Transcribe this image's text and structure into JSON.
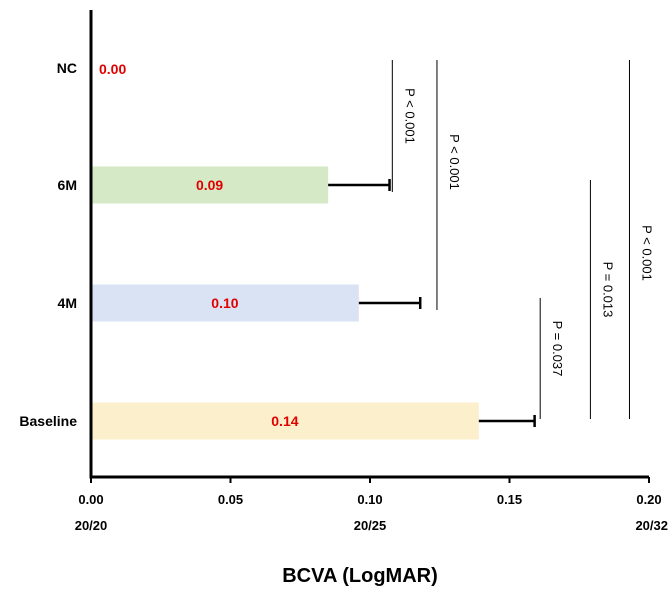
{
  "chart_data": {
    "type": "bar",
    "orientation": "horizontal",
    "categories": [
      "Baseline",
      "4M",
      "6M",
      "NC"
    ],
    "values": [
      0.139,
      0.096,
      0.085,
      0.0
    ],
    "errors": [
      0.02,
      0.022,
      0.022,
      0.0
    ],
    "value_labels": [
      "0.14",
      "0.10",
      "0.09",
      "0.00"
    ],
    "colors": [
      "#fcefcb",
      "#dae3f3",
      "#d6e9c6",
      "#ffffff"
    ],
    "value_label_color": "#e00000",
    "xlabel": "BCVA (LogMAR)",
    "xlim": [
      0,
      0.2
    ],
    "xticks": [
      {
        "value": 0,
        "label": "0.00"
      },
      {
        "value": 0.05,
        "label": "0.05"
      },
      {
        "value": 0.1,
        "label": "0.10"
      },
      {
        "value": 0.15,
        "label": "0.15"
      },
      {
        "value": 0.2,
        "label": "0.20"
      }
    ],
    "snellen_labels": [
      {
        "value": 0,
        "label": "20/20"
      },
      {
        "value": 0.1,
        "label": "20/25"
      },
      {
        "value": 0.2,
        "label": "20/32"
      }
    ],
    "significance": [
      {
        "from": "NC",
        "to": "6M",
        "x": 0.108,
        "label": "P < 0.001"
      },
      {
        "from": "NC",
        "to": "4M",
        "x": 0.124,
        "label": "P < 0.001"
      },
      {
        "from": "4M",
        "to": "Baseline",
        "x": 0.161,
        "label": "P = 0.037"
      },
      {
        "from": "6M",
        "to": "Baseline",
        "x": 0.179,
        "label": "P = 0.013"
      },
      {
        "from": "NC",
        "to": "Baseline",
        "x": 0.193,
        "label": "P < 0.001"
      }
    ],
    "grid": false,
    "legend": "none"
  }
}
